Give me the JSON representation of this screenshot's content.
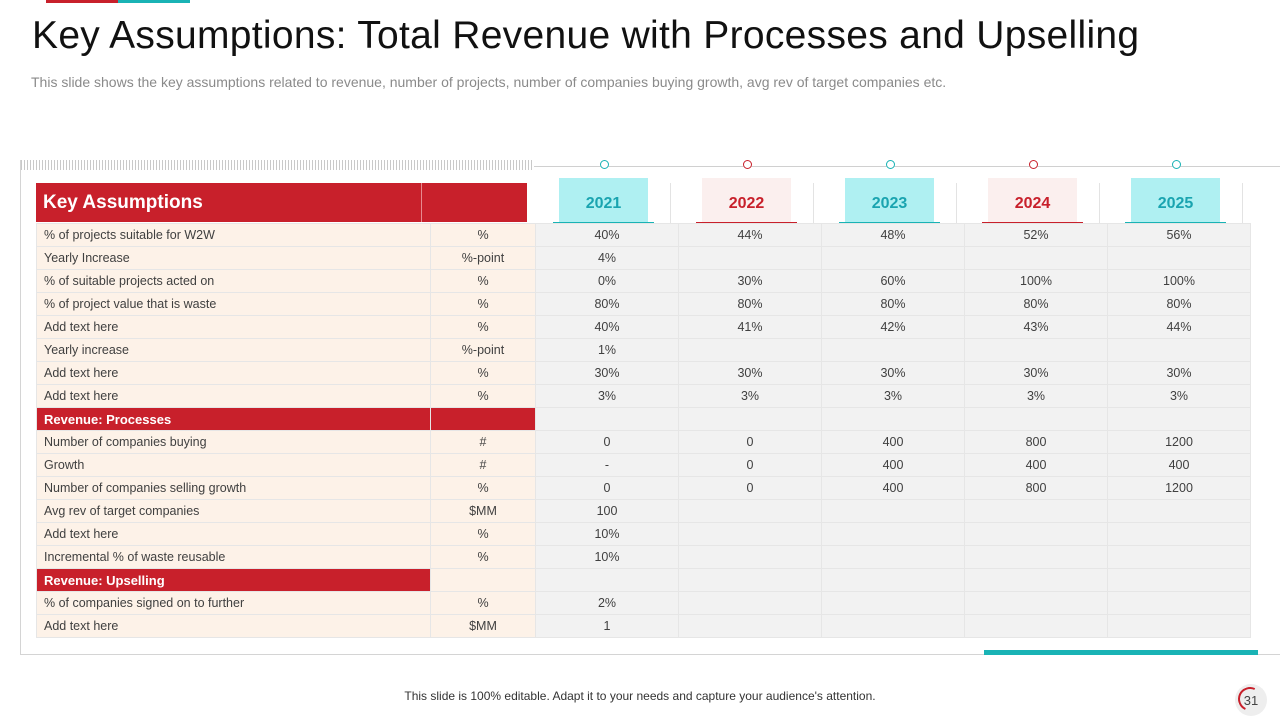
{
  "header": {
    "title": "Key Assumptions: Total Revenue with Processes and Upselling",
    "subtitle": "This slide shows the key assumptions related to revenue, number of projects, number of companies buying growth, avg rev of target companies etc."
  },
  "colors": {
    "accent_red": "#c8202b",
    "accent_teal": "#19b3b5"
  },
  "table": {
    "header_label": "Key Assumptions",
    "years": [
      {
        "label": "2021",
        "style": "teal"
      },
      {
        "label": "2022",
        "style": "red"
      },
      {
        "label": "2023",
        "style": "teal"
      },
      {
        "label": "2024",
        "style": "red"
      },
      {
        "label": "2025",
        "style": "teal"
      }
    ],
    "rows": [
      {
        "label": "% of projects suitable for W2W",
        "unit": "%",
        "values": [
          "40%",
          "44%",
          "48%",
          "52%",
          "56%"
        ]
      },
      {
        "label": "Yearly Increase",
        "unit": "%-point",
        "values": [
          "4%",
          "",
          "",
          "",
          ""
        ]
      },
      {
        "label": "% of suitable projects acted on",
        "unit": "%",
        "values": [
          "0%",
          "30%",
          "60%",
          "100%",
          "100%"
        ]
      },
      {
        "label": "% of project value that is waste",
        "unit": "%",
        "values": [
          "80%",
          "80%",
          "80%",
          "80%",
          "80%"
        ]
      },
      {
        "label": "Add text here",
        "unit": "%",
        "values": [
          "40%",
          "41%",
          "42%",
          "43%",
          "44%"
        ]
      },
      {
        "label": "Yearly increase",
        "unit": "%-point",
        "values": [
          "1%",
          "",
          "",
          "",
          ""
        ]
      },
      {
        "label": "Add text here",
        "unit": "%",
        "values": [
          "30%",
          "30%",
          "30%",
          "30%",
          "30%"
        ]
      },
      {
        "label": "Add text here",
        "unit": "%",
        "values": [
          "3%",
          "3%",
          "3%",
          "3%",
          "3%"
        ]
      },
      {
        "section": "Revenue: Processes",
        "span": "wide"
      },
      {
        "label": "Number of companies buying",
        "unit": "#",
        "values": [
          "0",
          "0",
          "400",
          "800",
          "1200"
        ]
      },
      {
        "label": "Growth",
        "unit": "#",
        "values": [
          "-",
          "0",
          "400",
          "400",
          "400"
        ]
      },
      {
        "label": "Number of companies selling growth",
        "unit": "%",
        "values": [
          "0",
          "0",
          "400",
          "800",
          "1200"
        ]
      },
      {
        "label": "Avg rev of target companies",
        "unit": "$MM",
        "values": [
          "100",
          "",
          "",
          "",
          ""
        ]
      },
      {
        "label": "Add text here",
        "unit": "%",
        "values": [
          "10%",
          "",
          "",
          "",
          ""
        ]
      },
      {
        "label": "Incremental % of waste reusable",
        "unit": "%",
        "values": [
          "10%",
          "",
          "",
          "",
          ""
        ]
      },
      {
        "section": "Revenue: Upselling",
        "span": "narrow"
      },
      {
        "label": "% of companies signed on to further",
        "unit": "%",
        "values": [
          "2%",
          "",
          "",
          "",
          ""
        ]
      },
      {
        "label": "Add text here",
        "unit": "$MM",
        "values": [
          "1",
          "",
          "",
          "",
          ""
        ]
      }
    ]
  },
  "footer": {
    "note": "This slide is 100% editable. Adapt it to your needs and capture your audience's attention.",
    "page_number": "31"
  }
}
